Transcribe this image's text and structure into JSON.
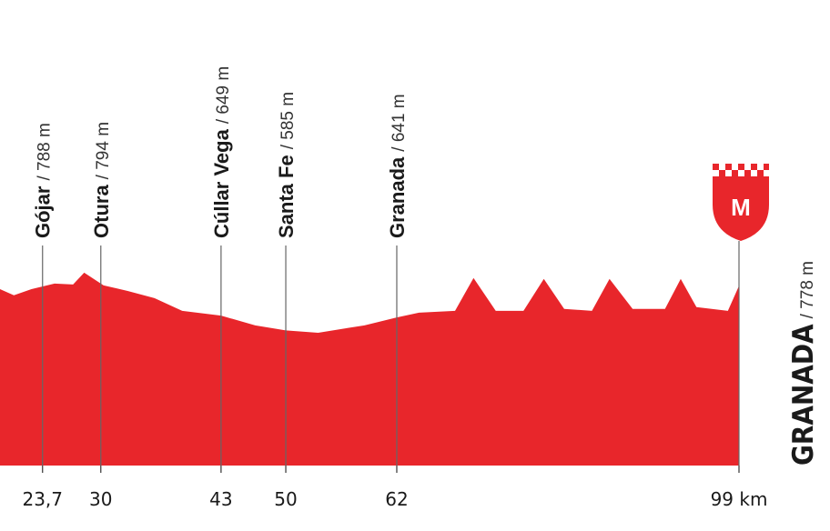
{
  "chart_data": {
    "type": "area",
    "color": "#e8262b",
    "x": [
      19.1,
      20.6,
      22.5,
      25.0,
      27.0,
      28.2,
      30.3,
      32.9,
      35.8,
      38.8,
      43.0,
      46.7,
      50.0,
      53.5,
      58.5,
      62.0,
      64.4,
      68.3,
      70.3,
      72.7,
      75.7,
      77.9,
      80.1,
      83.1,
      85.0,
      87.5,
      91.0,
      92.7,
      94.4,
      97.8,
      99.0
    ],
    "values": [
      764,
      737,
      764,
      788,
      784,
      835,
      780,
      756,
      725,
      670,
      649,
      607,
      585,
      575,
      607,
      641,
      662,
      670,
      812,
      670,
      670,
      808,
      678,
      670,
      808,
      678,
      678,
      808,
      686,
      670,
      778
    ],
    "xlim": [
      19.1,
      99
    ],
    "ylim": [
      0,
      2000
    ],
    "xticks": [
      {
        "value": 23.7,
        "label": "23,7"
      },
      30,
      43,
      50,
      62,
      {
        "value": 99,
        "label": "99 km"
      }
    ],
    "waypoints": [
      {
        "name": "Gójar",
        "elevation": {
          "value": 788,
          "label": "/ 788 m"
        }
      },
      {
        "name": "Otura",
        "elevation": {
          "value": 794,
          "label": "/ 794 m"
        }
      },
      {
        "name": "Cúllar Vega",
        "elevation": {
          "value": 649,
          "label": "/ 649 m"
        }
      },
      {
        "name": "Santa Fe",
        "elevation": {
          "value": 585,
          "label": "/ 585 m"
        }
      },
      {
        "name": "Granada",
        "elevation": {
          "value": 641,
          "label": "/ 641 m"
        }
      }
    ],
    "finish": {
      "name": "GRANADA",
      "elevation": {
        "value": 778,
        "label": "/ 778 m"
      },
      "badge": "M"
    }
  }
}
